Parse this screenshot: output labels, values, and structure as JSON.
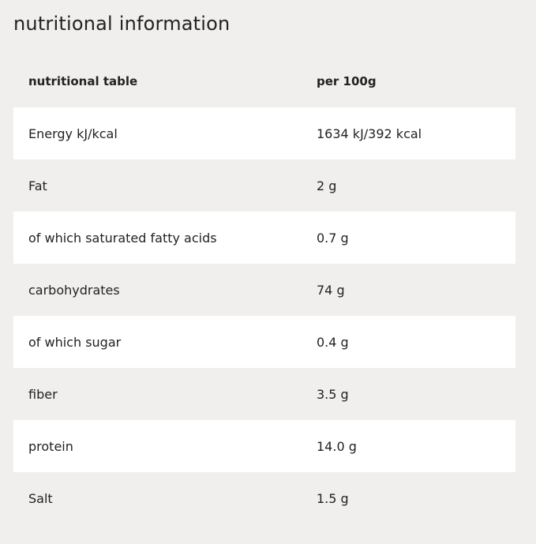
{
  "title": "nutritional information",
  "table": {
    "header": [
      "nutritional table",
      "per 100g"
    ],
    "rows": [
      [
        "Energy kJ/kcal",
        "1634 kJ/392 kcal"
      ],
      [
        "Fat",
        "2 g"
      ],
      [
        "of which saturated fatty acids",
        "0.7 g"
      ],
      [
        "carbohydrates",
        "74 g"
      ],
      [
        "of which sugar",
        "0.4 g"
      ],
      [
        "fiber",
        "3.5 g"
      ],
      [
        "protein",
        "14.0 g"
      ],
      [
        "Salt",
        "1.5 g"
      ]
    ]
  }
}
